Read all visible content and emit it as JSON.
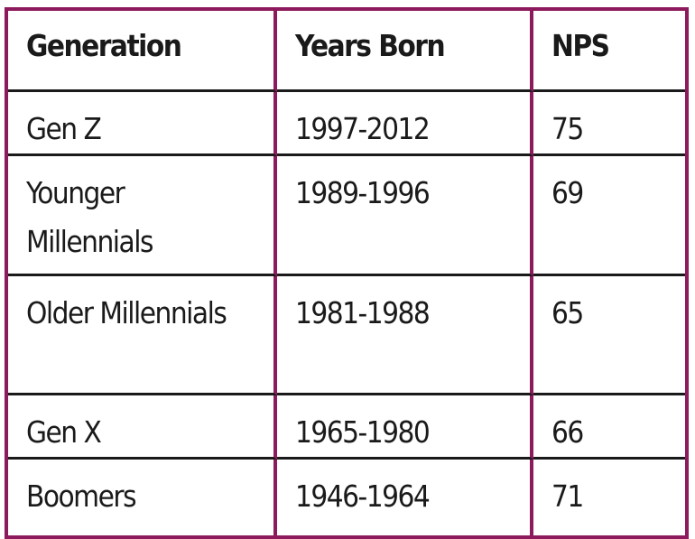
{
  "table": {
    "header": [
      "Generation",
      "Years Born",
      "NPS"
    ],
    "rows": [
      [
        "Gen Z",
        "1997-2012",
        75
      ],
      [
        "Younger Millennials",
        "1989-1996",
        69
      ],
      [
        "Older Millennials",
        "1981-1988",
        65
      ],
      [
        "Gen X",
        "1965-1980",
        66
      ],
      [
        "Boomers",
        "1946-1964",
        71
      ]
    ]
  }
}
